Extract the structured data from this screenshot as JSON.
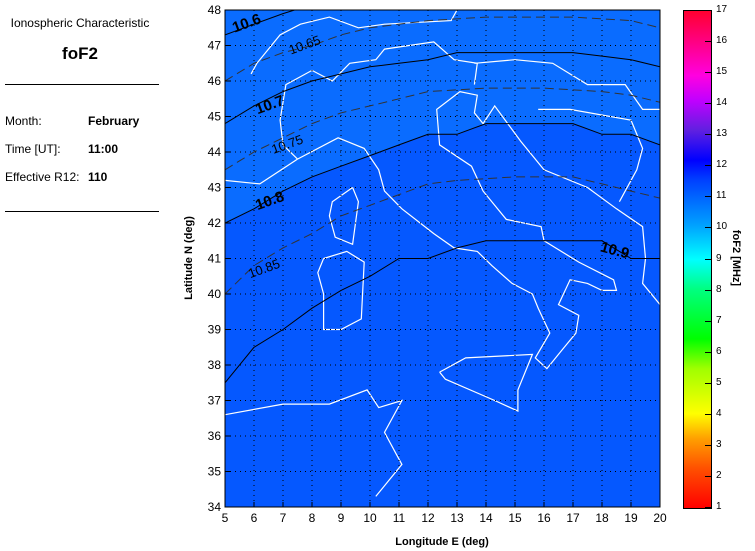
{
  "info": {
    "heading": "Ionospheric Characteristic",
    "parameter": "foF2",
    "month_label": "Month:",
    "month": "February",
    "time_label": "Time [UT]:",
    "time": "11:00",
    "r12_label": "Effective R12:",
    "r12": "110"
  },
  "chart_data": {
    "type": "heatmap",
    "xlabel": "Longitude E (deg)",
    "ylabel": "Latitude N (deg)",
    "xlim": [
      5,
      20
    ],
    "ylim": [
      34,
      48
    ],
    "xticks": [
      5,
      6,
      7,
      8,
      9,
      10,
      11,
      12,
      13,
      14,
      15,
      16,
      17,
      18,
      19,
      20
    ],
    "yticks": [
      34,
      35,
      36,
      37,
      38,
      39,
      40,
      41,
      42,
      43,
      44,
      45,
      46,
      47,
      48
    ],
    "grid": true,
    "colorbar": {
      "label": "foF2 [MHz]",
      "range": [
        1,
        17
      ],
      "ticks": [
        1,
        2,
        3,
        4,
        5,
        6,
        7,
        8,
        9,
        10,
        11,
        12,
        13,
        14,
        15,
        16,
        17
      ]
    },
    "fill_colors": {
      "below_10.8": "#0a6cff",
      "above_10.8": "#0558ff"
    },
    "contours": [
      {
        "level": "10.6",
        "style": "solid",
        "points": [
          [
            5,
            47.3
          ],
          [
            6,
            47.6
          ],
          [
            7,
            47.9
          ],
          [
            7.4,
            48
          ]
        ]
      },
      {
        "level": "10.65",
        "style": "dashed",
        "points": [
          [
            5,
            46.0
          ],
          [
            6,
            46.5
          ],
          [
            7,
            46.8
          ],
          [
            8,
            47.0
          ],
          [
            9,
            47.3
          ],
          [
            10,
            47.5
          ],
          [
            12,
            47.7
          ],
          [
            14,
            47.8
          ],
          [
            17,
            47.8
          ],
          [
            19,
            47.7
          ],
          [
            20,
            47.5
          ]
        ]
      },
      {
        "level": "10.7",
        "style": "solid",
        "points": [
          [
            5,
            44.8
          ],
          [
            6,
            45.3
          ],
          [
            7,
            45.7
          ],
          [
            8,
            46.0
          ],
          [
            9,
            46.2
          ],
          [
            10,
            46.4
          ],
          [
            11,
            46.5
          ],
          [
            12,
            46.6
          ],
          [
            13,
            46.8
          ],
          [
            17,
            46.8
          ],
          [
            18,
            46.7
          ],
          [
            19,
            46.6
          ],
          [
            20,
            46.4
          ]
        ]
      },
      {
        "level": "10.75",
        "style": "dashed",
        "points": [
          [
            5,
            43.5
          ],
          [
            6,
            44.0
          ],
          [
            7,
            44.4
          ],
          [
            8,
            44.8
          ],
          [
            9,
            45.1
          ],
          [
            10,
            45.3
          ],
          [
            11,
            45.5
          ],
          [
            12,
            45.7
          ],
          [
            14,
            45.8
          ],
          [
            16,
            45.8
          ],
          [
            18,
            45.7
          ],
          [
            19,
            45.6
          ],
          [
            20,
            45.4
          ]
        ]
      },
      {
        "level": "10.8",
        "style": "solid",
        "points": [
          [
            5,
            42.0
          ],
          [
            6,
            42.4
          ],
          [
            7,
            42.9
          ],
          [
            8,
            43.3
          ],
          [
            9,
            43.6
          ],
          [
            10,
            43.9
          ],
          [
            11,
            44.2
          ],
          [
            12,
            44.5
          ],
          [
            13,
            44.5
          ],
          [
            14,
            44.8
          ],
          [
            17,
            44.8
          ],
          [
            18,
            44.5
          ],
          [
            19,
            44.5
          ],
          [
            20,
            44.2
          ]
        ]
      },
      {
        "level": "10.85",
        "style": "dashed",
        "points": [
          [
            5,
            40.0
          ],
          [
            6,
            40.8
          ],
          [
            7,
            41.3
          ],
          [
            8,
            41.7
          ],
          [
            9,
            42.2
          ],
          [
            10,
            42.5
          ],
          [
            11,
            42.8
          ],
          [
            12,
            43.1
          ],
          [
            13,
            43.2
          ],
          [
            15,
            43.3
          ],
          [
            17,
            43.3
          ],
          [
            18,
            43.1
          ],
          [
            19,
            42.9
          ],
          [
            20,
            42.7
          ]
        ]
      },
      {
        "level": "10.9",
        "style": "solid",
        "points": [
          [
            5,
            37.5
          ],
          [
            6,
            38.5
          ],
          [
            7,
            39.0
          ],
          [
            8,
            39.6
          ],
          [
            9,
            40.1
          ],
          [
            10,
            40.5
          ],
          [
            11,
            41.0
          ],
          [
            12,
            41.0
          ],
          [
            13,
            41.3
          ],
          [
            14,
            41.5
          ],
          [
            18,
            41.5
          ],
          [
            19,
            41.0
          ],
          [
            20,
            41.0
          ]
        ]
      }
    ],
    "contour_labels": [
      {
        "text": "10.6",
        "at": [
          5.8,
          47.5
        ],
        "bold": true
      },
      {
        "text": "10.65",
        "at": [
          7.8,
          46.9
        ],
        "bold": false
      },
      {
        "text": "10.7",
        "at": [
          6.6,
          45.2
        ],
        "bold": true
      },
      {
        "text": "10.75",
        "at": [
          7.2,
          44.1
        ],
        "bold": false
      },
      {
        "text": "10.8",
        "at": [
          6.6,
          42.5
        ],
        "bold": true
      },
      {
        "text": "10.85",
        "at": [
          6.4,
          40.6
        ],
        "bold": false
      },
      {
        "text": "10.9",
        "at": [
          18.4,
          41.1
        ],
        "bold": true
      }
    ]
  }
}
